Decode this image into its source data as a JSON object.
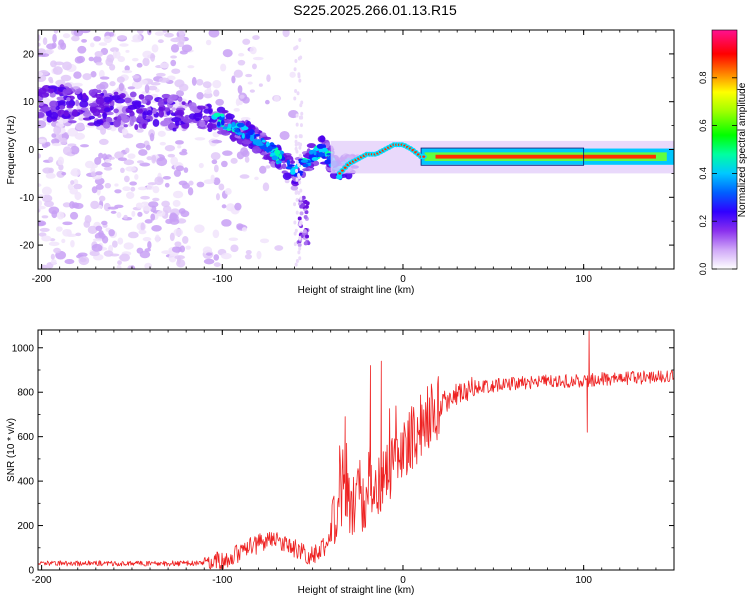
{
  "title": "S225.2025.266.01.13.R15",
  "colors": {
    "axis": "#000000",
    "snr_line": "#ee2222",
    "background": "#ffffff"
  },
  "chart_data": [
    {
      "type": "heatmap",
      "xlabel": "Height of straight line (km)",
      "ylabel": "Frequency (Hz)",
      "xlim": [
        -202,
        150
      ],
      "ylim": [
        -25,
        25
      ],
      "xticks": [
        -200,
        -100,
        0,
        100
      ],
      "yticks": [
        -20,
        -10,
        0,
        10,
        20
      ],
      "colorbar": {
        "label": "Normalized spectral amplitude",
        "range": [
          0,
          1
        ],
        "ticks": [
          "0.0",
          "0.2",
          "0.4",
          "0.6",
          "0.8"
        ],
        "colormap": [
          "#ffffff",
          "#f4e8ff",
          "#d8b8f8",
          "#a070f0",
          "#7010e0",
          "#3000ff",
          "#0060ff",
          "#00c0ff",
          "#00ff80",
          "#80ff00",
          "#ffff00",
          "#ff8000",
          "#ff0000",
          "#ff0080"
        ]
      },
      "ridge": {
        "x": [
          -202,
          -180,
          -160,
          -140,
          -120,
          -100,
          -90,
          -80,
          -70,
          -60,
          -50,
          -45,
          -40,
          -35,
          -30,
          -25,
          -20,
          -15,
          -10,
          -5,
          0,
          5,
          10,
          20,
          40,
          60,
          80,
          100,
          120,
          140,
          150
        ],
        "y": [
          10,
          9,
          8.5,
          8,
          7.5,
          6,
          4,
          2,
          -1,
          -5,
          -1,
          0,
          -2,
          -5,
          -3,
          -2,
          -1,
          -1,
          0,
          1,
          1,
          0,
          -1.5,
          -1.5,
          -1.5,
          -1.5,
          -1.5,
          -1.5,
          -1.5,
          -1.5,
          -1
        ]
      }
    },
    {
      "type": "line",
      "xlabel": "Height of straight line (km)",
      "ylabel": "SNR (10 * v/v)",
      "xlim": [
        -202,
        150
      ],
      "ylim": [
        0,
        1080
      ],
      "xticks": [
        -200,
        -100,
        0,
        100
      ],
      "yticks": [
        0,
        200,
        400,
        600,
        800,
        1000
      ],
      "profile": {
        "x": [
          -202,
          -110,
          -100,
          -90,
          -80,
          -70,
          -60,
          -50,
          -40,
          -35,
          -30,
          -25,
          -20,
          -15,
          -10,
          -5,
          0,
          5,
          10,
          15,
          20,
          30,
          40,
          60,
          80,
          100,
          110,
          130,
          150
        ],
        "y": [
          30,
          30,
          45,
          80,
          120,
          130,
          100,
          60,
          130,
          350,
          280,
          300,
          320,
          360,
          420,
          480,
          540,
          600,
          650,
          700,
          740,
          790,
          820,
          840,
          850,
          850,
          860,
          865,
          870
        ],
        "spikes": [
          {
            "x": 103,
            "y": 1075
          },
          {
            "x": 102,
            "y": 620
          },
          {
            "x": -12,
            "y": 940
          },
          {
            "x": -18,
            "y": 920
          },
          {
            "x": -32,
            "y": 690
          }
        ]
      }
    }
  ]
}
